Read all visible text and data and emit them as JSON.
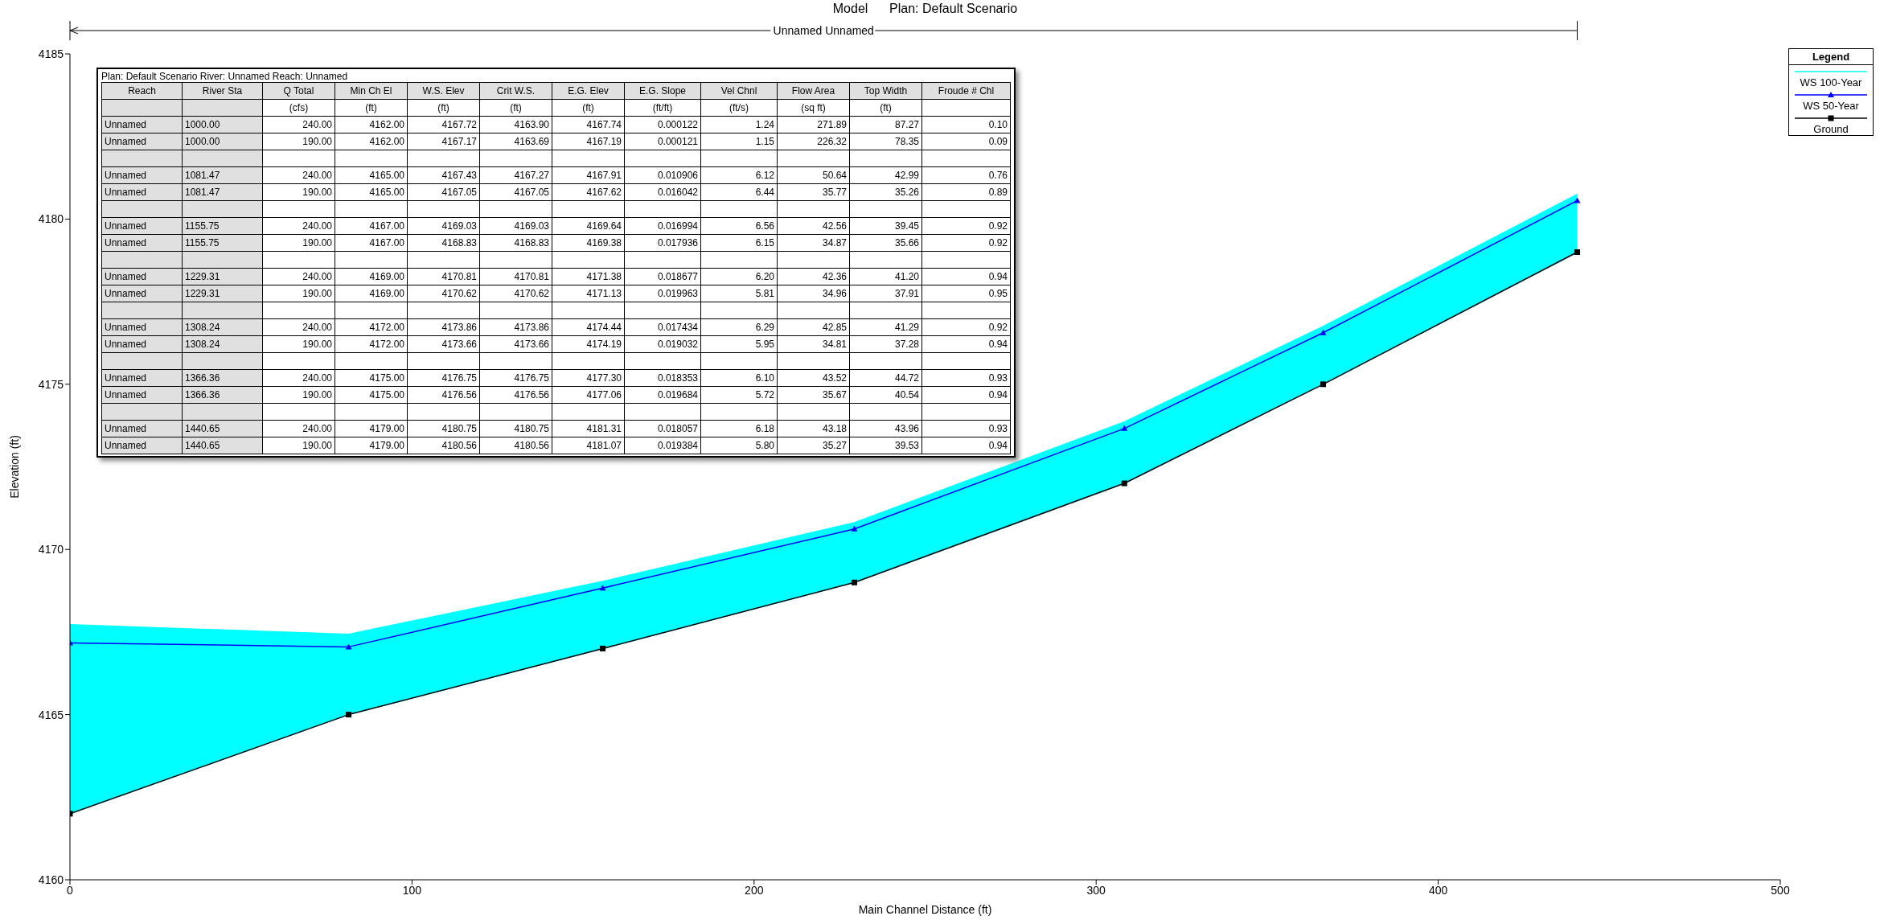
{
  "chart_data": {
    "type": "line",
    "title": "Model      Plan: Default Scenario",
    "xlabel": "Main Channel Distance (ft)",
    "ylabel": "Elevation (ft)",
    "legend_title": "Legend",
    "legend": "top right",
    "grid": false,
    "x": [
      0,
      81.47,
      155.75,
      229.31,
      308.24,
      366.36,
      440.65
    ],
    "xlim": [
      0,
      500
    ],
    "xticks": [
      0,
      100,
      200,
      300,
      400,
      500
    ],
    "ylim": [
      4160,
      4185
    ],
    "yticks": [
      4160,
      4165,
      4170,
      4175,
      4180,
      4185
    ],
    "series": [
      {
        "name": "WS  100-Year",
        "type": "area",
        "color": "#00ffff",
        "marker": "none",
        "values": [
          4167.72,
          4167.43,
          4169.03,
          4170.81,
          4173.86,
          4176.75,
          4180.75
        ]
      },
      {
        "name": "WS  50-Year",
        "type": "line",
        "color": "#0000ff",
        "marker": "triangle",
        "values": [
          4167.17,
          4167.05,
          4168.83,
          4170.62,
          4173.66,
          4176.56,
          4180.56
        ]
      },
      {
        "name": "Ground",
        "type": "line",
        "color": "#000000",
        "marker": "square",
        "values": [
          4162,
          4165,
          4167,
          4169,
          4172,
          4175,
          4179
        ]
      }
    ],
    "annotations": [
      "Unnamed Unnamed",
      "Plan: Default Scenario   River: Unnamed   Reach: Unnamed",
      "Reach",
      "River Sta",
      "Q Total",
      "Min Ch El",
      "W.S. Elev",
      "Crit W.S.",
      "E.G. Elev",
      "E.G. Slope",
      "Vel Chnl",
      "Flow Area",
      "Top Width",
      "Froude # Chl",
      "(cfs)",
      "(ft)",
      "(ft)",
      "(ft)",
      "(ft)",
      "(ft/ft)",
      "(ft/s)",
      "(sq ft)",
      "(ft)",
      "Unnamed",
      "1000.00",
      "240.00",
      "4162.00",
      "4167.72",
      "4163.90",
      "4167.74",
      "0.000122",
      "1.24",
      "271.89",
      "87.27",
      "0.10",
      "Unnamed",
      "1000.00",
      "190.00",
      "4162.00",
      "4167.17",
      "4163.69",
      "4167.19",
      "0.000121",
      "1.15",
      "226.32",
      "78.35",
      "0.09",
      "Unnamed",
      "1081.47",
      "240.00",
      "4165.00",
      "4167.43",
      "4167.27",
      "4167.91",
      "0.010906",
      "6.12",
      "50.64",
      "42.99",
      "0.76",
      "Unnamed",
      "1081.47",
      "190.00",
      "4165.00",
      "4167.05",
      "4167.05",
      "4167.62",
      "0.016042",
      "6.44",
      "35.77",
      "35.26",
      "0.89",
      "Unnamed",
      "1155.75",
      "240.00",
      "4167.00",
      "4169.03",
      "4169.03",
      "4169.64",
      "0.016994",
      "6.56",
      "42.56",
      "39.45",
      "0.92",
      "Unnamed",
      "1155.75",
      "190.00",
      "4167.00",
      "4168.83",
      "4168.83",
      "4169.38",
      "0.017936",
      "6.15",
      "34.87",
      "35.66",
      "0.92",
      "Unnamed",
      "1229.31",
      "240.00",
      "4169.00",
      "4170.81",
      "4170.81",
      "4171.38",
      "0.018677",
      "6.20",
      "42.36",
      "41.20",
      "0.94",
      "Unnamed",
      "1229.31",
      "190.00",
      "4169.00",
      "4170.62",
      "4170.62",
      "4171.13",
      "0.019963",
      "5.81",
      "34.96",
      "37.91",
      "0.95",
      "Unnamed",
      "1308.24",
      "240.00",
      "4172.00",
      "4173.86",
      "4173.86",
      "4174.44",
      "0.017434",
      "6.29",
      "42.85",
      "41.29",
      "0.92",
      "Unnamed",
      "1308.24",
      "190.00",
      "4172.00",
      "4173.66",
      "4173.66",
      "4174.19",
      "0.019032",
      "5.95",
      "34.81",
      "37.28",
      "0.94",
      "Unnamed",
      "1366.36",
      "240.00",
      "4175.00",
      "4176.75",
      "4176.75",
      "4177.30",
      "0.018353",
      "6.10",
      "43.52",
      "44.72",
      "0.93",
      "Unnamed",
      "1366.36",
      "190.00",
      "4175.00",
      "4176.56",
      "4176.56",
      "4177.06",
      "0.019684",
      "5.72",
      "35.67",
      "40.54",
      "0.94",
      "Unnamed",
      "1440.65",
      "240.00",
      "4179.00",
      "4180.75",
      "4180.75",
      "4181.31",
      "0.018057",
      "6.18",
      "43.18",
      "43.96",
      "0.93",
      "Unnamed",
      "1440.65",
      "190.00",
      "4179.00",
      "4180.56",
      "4180.56",
      "4181.07",
      "0.019384",
      "5.80",
      "35.27",
      "39.53",
      "0.94"
    ]
  }
}
